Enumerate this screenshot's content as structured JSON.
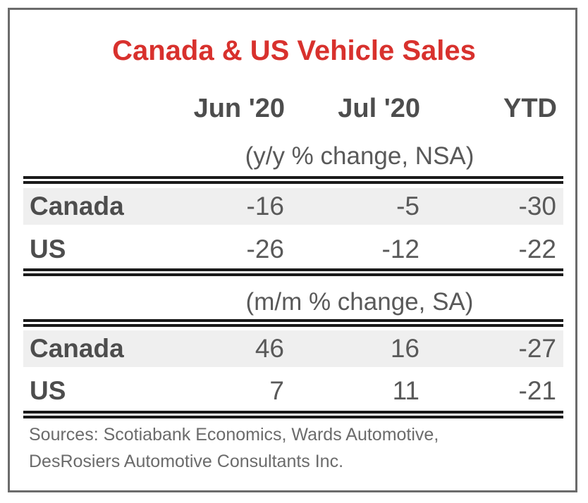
{
  "chart_data": {
    "type": "table",
    "title": "Canada & US Vehicle Sales",
    "columns": [
      "Jun '20",
      "Jul '20",
      "YTD"
    ],
    "sections": [
      {
        "subtitle": "(y/y % change, NSA)",
        "rows": [
          {
            "label": "Canada",
            "values": [
              "-16",
              "-5",
              "-30"
            ]
          },
          {
            "label": "US",
            "values": [
              "-26",
              "-12",
              "-22"
            ]
          }
        ]
      },
      {
        "subtitle": "(m/m % change, SA)",
        "rows": [
          {
            "label": "Canada",
            "values": [
              "46",
              "16",
              "-27"
            ]
          },
          {
            "label": "US",
            "values": [
              "7",
              "11",
              "-21"
            ]
          }
        ]
      }
    ],
    "source_lines": [
      "Sources: Scotiabank Economics, Wards Automotive,",
      "DesRosiers Automotive Consultants Inc."
    ]
  },
  "colors": {
    "title": "#d8312d",
    "text": "#595959",
    "rule": "#1a1a1a",
    "shade": "#efefef",
    "frame": "#6b6b6b"
  }
}
